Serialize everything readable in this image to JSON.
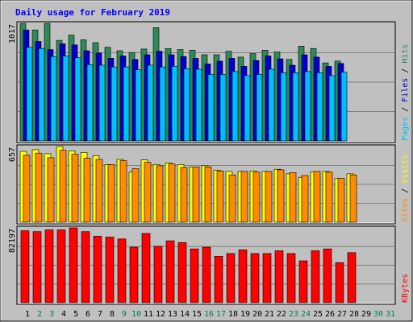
{
  "chart_data": {
    "type": "bar",
    "title": "Daily usage for February 2019",
    "days": [
      "1",
      "2",
      "3",
      "4",
      "5",
      "6",
      "7",
      "8",
      "9",
      "10",
      "11",
      "12",
      "13",
      "14",
      "15",
      "16",
      "17",
      "18",
      "19",
      "20",
      "21",
      "22",
      "23",
      "24",
      "25",
      "26",
      "27",
      "28",
      "29",
      "30",
      "31"
    ],
    "weekend_days": [
      2,
      3,
      9,
      10,
      16,
      17,
      23,
      24,
      30,
      31
    ],
    "panels": [
      {
        "id": "hits_files_pages",
        "max_label": "1017",
        "ymax": 1017,
        "side_label": {
          "parts": [
            "Pages",
            "Files",
            "Hits"
          ],
          "sep": " / "
        },
        "series": [
          {
            "name": "Hits",
            "color": "#2e8b57",
            "values": [
              1017,
              960,
              1017,
              870,
              915,
              875,
              850,
              810,
              780,
              765,
              795,
              980,
              800,
              790,
              785,
              745,
              745,
              775,
              725,
              755,
              785,
              770,
              705,
              820,
              800,
              675,
              690,
              0,
              0,
              0,
              0
            ]
          },
          {
            "name": "Files",
            "color": "#0000cd",
            "values": [
              960,
              860,
              790,
              840,
              830,
              780,
              760,
              715,
              735,
              705,
              745,
              775,
              745,
              730,
              715,
              665,
              690,
              715,
              645,
              695,
              735,
              710,
              655,
              745,
              725,
              645,
              670,
              0,
              0,
              0,
              0
            ]
          },
          {
            "name": "Pages",
            "color": "#00bfff",
            "values": [
              810,
              800,
              730,
              735,
              720,
              660,
              655,
              640,
              640,
              615,
              655,
              640,
              645,
              625,
              620,
              575,
              575,
              600,
              565,
              575,
              620,
              590,
              590,
              600,
              590,
              565,
              595,
              0,
              0,
              0,
              0
            ]
          }
        ]
      },
      {
        "id": "visits_sites",
        "max_label": "657",
        "ymax": 657,
        "side_label": {
          "parts": [
            "Sites",
            "Visits"
          ],
          "sep": " / "
        },
        "series": [
          {
            "name": "Visits",
            "color": "#ffff00",
            "values": [
              615,
              630,
              595,
              657,
              620,
              605,
              575,
              500,
              545,
              435,
              540,
              500,
              515,
              500,
              480,
              490,
              450,
              440,
              440,
              445,
              440,
              460,
              420,
              390,
              435,
              440,
              380,
              420,
              0,
              0,
              0
            ]
          },
          {
            "name": "Sites",
            "color": "#ff8c00",
            "values": [
              580,
              600,
              560,
              625,
              590,
              555,
              545,
              500,
              535,
              465,
              520,
              490,
              505,
              475,
              480,
              480,
              445,
              410,
              440,
              435,
              440,
              455,
              430,
              405,
              440,
              435,
              380,
              410,
              0,
              0,
              0
            ]
          }
        ]
      },
      {
        "id": "kbytes",
        "max_label": "82197",
        "ymax": 82197,
        "side_label": {
          "parts": [
            "KBytes"
          ],
          "sep": ""
        },
        "series": [
          {
            "name": "KBytes",
            "color": "#ff0000",
            "values": [
              79000,
              78000,
              80000,
              80000,
              82197,
              78000,
              73000,
              72000,
              70000,
              61000,
              76000,
              62000,
              68000,
              66000,
              59000,
              61000,
              51000,
              54000,
              58000,
              54000,
              54000,
              57000,
              54000,
              46000,
              57000,
              59000,
              44000,
              55000,
              0,
              0,
              0
            ]
          }
        ]
      }
    ]
  }
}
